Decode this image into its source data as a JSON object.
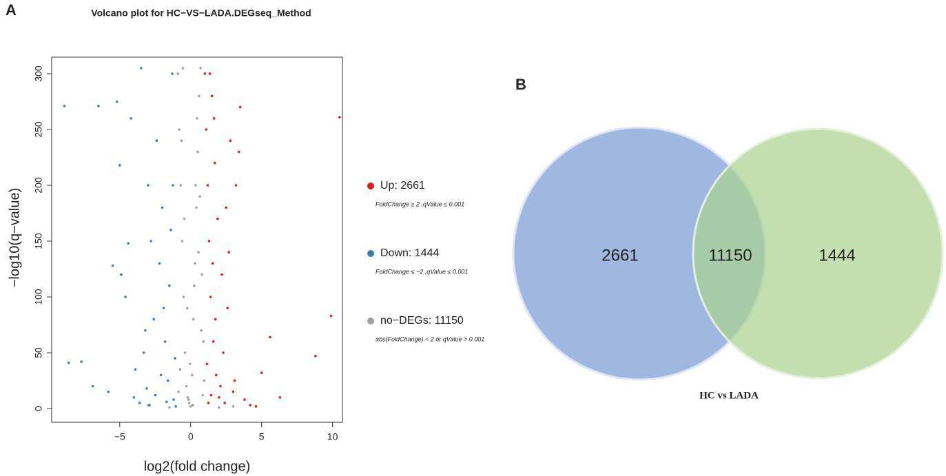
{
  "chart_data": [
    {
      "type": "scatter",
      "panel": "A",
      "title": "Volcano plot for HC−VS−LADA.DEGseq_Method",
      "xlabel": "log2(fold change)",
      "ylabel": "−log10(q−value)",
      "xlim": [
        -9.8,
        10.7
      ],
      "ylim": [
        -12.3,
        314.8
      ],
      "xticks": [
        {
          "value": -5,
          "label": "−5"
        },
        0,
        5,
        10
      ],
      "yticks": [
        0,
        50,
        100,
        150,
        200,
        250,
        300
      ],
      "series": [
        {
          "name": "Up: 2661",
          "description": "FoldChange ≥ 2 ,qValue ≤ 0.001",
          "color": "#e41a1c",
          "x": [
            1.0,
            1.1,
            1.2,
            1.3,
            1.4,
            1.5,
            1.6,
            1.7,
            1.8,
            1.9,
            2.0,
            2.2,
            2.4,
            2.6,
            2.8,
            3.0,
            3.2,
            3.5,
            3.8,
            4.2,
            5.0,
            5.6,
            6.3,
            8.8,
            9.9,
            10.5,
            1.15,
            1.35,
            1.55,
            1.75,
            2.1,
            2.5,
            3.4,
            1.25,
            1.45,
            1.65,
            2.3,
            2.7,
            4.6,
            3.1
          ],
          "values": [
            300,
            250,
            200,
            150,
            100,
            280,
            60,
            220,
            30,
            170,
            10,
            120,
            5,
            90,
            240,
            15,
            200,
            270,
            8,
            3,
            32,
            64,
            10,
            47,
            83,
            261,
            40,
            300,
            130,
            80,
            20,
            180,
            230,
            5,
            12,
            260,
            50,
            140,
            2,
            25
          ]
        },
        {
          "name": "Down: 1444",
          "description": "FoldChange ≤ −2 ,qValue ≤ 0.001",
          "color": "#377eb8",
          "x": [
            -8.9,
            -8.6,
            -7.7,
            -6.9,
            -6.5,
            -5.8,
            -5.2,
            -5.0,
            -4.9,
            -4.6,
            -4.2,
            -3.9,
            -3.5,
            -3.3,
            -3.0,
            -2.8,
            -2.6,
            -2.4,
            -2.2,
            -2.0,
            -1.8,
            -1.6,
            -1.5,
            -1.3,
            -1.2,
            -1.1,
            -4.0,
            -3.6,
            -3.1,
            -2.5,
            -1.9,
            -1.4,
            -2.9,
            -2.1,
            -1.7,
            -1.25,
            -1.05,
            -5.5,
            -4.4,
            -3.2
          ],
          "values": [
            271,
            41,
            42,
            20,
            271,
            15,
            275,
            218,
            120,
            100,
            260,
            35,
            305,
            50,
            200,
            150,
            80,
            240,
            130,
            180,
            60,
            25,
            110,
            300,
            8,
            45,
            10,
            5,
            18,
            12,
            90,
            160,
            3,
            30,
            6,
            200,
            2,
            128,
            148,
            70
          ]
        },
        {
          "name": "no−DEGs: 11150",
          "description": "abs(FoldChange) < 2  or qValue > 0.001",
          "color": "#a0a0a0",
          "x": [
            -0.9,
            -0.8,
            -0.7,
            -0.6,
            -0.5,
            -0.4,
            -0.3,
            -0.2,
            -0.1,
            0,
            0.1,
            0.2,
            0.3,
            0.4,
            0.5,
            0.6,
            0.7,
            0.8,
            0.9,
            -0.85,
            -0.65,
            -0.45,
            -0.25,
            -0.05,
            0.15,
            0.35,
            0.55,
            0.75,
            0.95,
            -1.5,
            2.0,
            -3.0,
            3.0,
            -0.55,
            0.45,
            -0.15,
            0.25,
            0.65,
            -0.75,
            0.85
          ],
          "values": [
            300,
            250,
            200,
            150,
            100,
            50,
            20,
            10,
            5,
            2,
            30,
            80,
            130,
            180,
            230,
            280,
            305,
            120,
            60,
            15,
            240,
            170,
            90,
            40,
            3,
            200,
            140,
            70,
            25,
            1,
            1,
            3,
            2,
            305,
            260,
            8,
            110,
            190,
            35,
            12
          ]
        }
      ]
    },
    {
      "type": "venn",
      "panel": "B",
      "caption": "HC vs LADA",
      "values": [
        2661,
        11150,
        1444
      ],
      "colors": [
        "#8faadc",
        "#a9d18e"
      ]
    }
  ]
}
